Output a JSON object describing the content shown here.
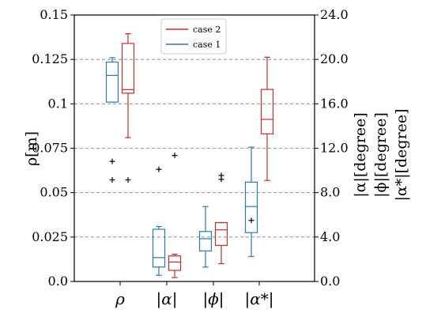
{
  "chart_data": {
    "type": "boxplot",
    "categories": [
      "ρ",
      "|α|",
      "|ϕ|",
      "|α*|"
    ],
    "y_left": {
      "label": "ρ[m]",
      "lim": [
        0,
        0.15
      ],
      "ticks": [
        0,
        0.025,
        0.05,
        0.075,
        0.1,
        0.125,
        0.15
      ],
      "tick_labels": [
        "0.0",
        "0.025",
        "0.05",
        "0.075",
        "0.1",
        "0.125",
        "0.15"
      ]
    },
    "y_right": {
      "labels": [
        "|α|[degree]",
        "|ϕ|[degree]",
        "|α*|[degree]"
      ],
      "lim": [
        0,
        24
      ],
      "ticks": [
        0,
        4,
        8,
        12,
        16,
        20,
        24
      ],
      "tick_labels": [
        "0.0",
        "4.0",
        "8.0",
        "12.0",
        "16.0",
        "20.0",
        "24.0"
      ]
    },
    "grid": "horizontal-dashed",
    "legend_position": "top-center",
    "series": [
      {
        "name": "case 1",
        "color": "#2a7ab8",
        "boxes": [
          {
            "category": "ρ",
            "axis": "left",
            "whisker_low": 0.101,
            "q1": 0.101,
            "median": 0.116,
            "q3": 0.1235,
            "whisker_high": 0.126,
            "outliers": [
              0.0676,
              0.0572
            ]
          },
          {
            "category": "|α|",
            "axis": "right",
            "whisker_low": 0.55,
            "q1": 1.3,
            "median": 2.15,
            "q3": 4.7,
            "whisker_high": 4.95,
            "outliers": []
          },
          {
            "category": "|ϕ|",
            "axis": "right",
            "whisker_low": 1.3,
            "q1": 2.75,
            "median": 3.85,
            "q3": 4.5,
            "whisker_high": 6.75,
            "outliers": []
          },
          {
            "category": "|α*|",
            "axis": "right",
            "whisker_low": 2.25,
            "q1": 4.4,
            "median": 6.75,
            "q3": 8.95,
            "whisker_high": 12.1,
            "outliers": [
              5.5
            ]
          }
        ]
      },
      {
        "name": "case 2",
        "color": "#cc2b2b",
        "boxes": [
          {
            "category": "ρ",
            "axis": "left",
            "whisker_low": 0.081,
            "q1": 0.106,
            "median": 0.108,
            "q3": 0.134,
            "whisker_high": 0.1395,
            "outliers": [
              0.0572
            ]
          },
          {
            "category": "|α|",
            "axis": "right",
            "whisker_low": 0.35,
            "q1": 1.0,
            "median": 1.75,
            "q3": 2.3,
            "whisker_high": 2.45,
            "outliers": []
          },
          {
            "category": "|ϕ|",
            "axis": "right",
            "whisker_low": 1.6,
            "q1": 3.25,
            "median": 4.65,
            "q3": 5.3,
            "whisker_high": 5.3,
            "outliers": []
          },
          {
            "category": "|α*|",
            "axis": "right",
            "whisker_low": 9.1,
            "q1": 13.3,
            "median": 14.6,
            "q3": 17.3,
            "whisker_high": 20.2,
            "outliers": []
          }
        ]
      }
    ],
    "extra_outliers": [
      {
        "category": "|α|",
        "side": "left",
        "axis": "right",
        "value": 10.1
      },
      {
        "category": "|α|",
        "side": "right",
        "axis": "right",
        "value": 11.35
      },
      {
        "category": "|ϕ|",
        "side": "right",
        "axis": "right",
        "value": 9.55
      },
      {
        "category": "|ϕ|",
        "side": "right",
        "axis": "right",
        "value": 9.2
      }
    ]
  }
}
